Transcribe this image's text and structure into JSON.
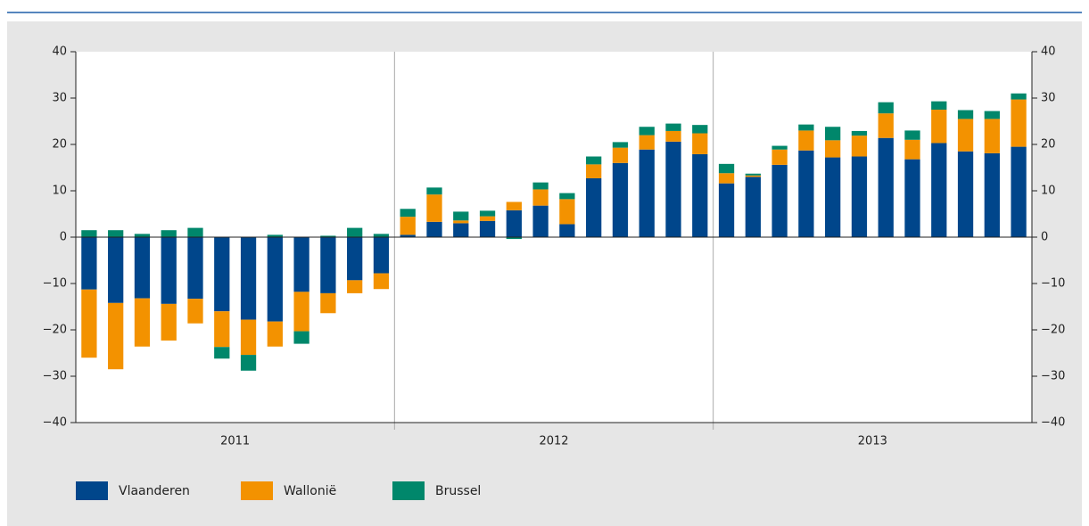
{
  "chart_data": {
    "type": "stacked_bar",
    "categories": [
      null,
      null,
      null,
      null,
      null,
      null,
      null,
      null,
      null,
      null,
      null,
      null,
      null,
      null,
      null,
      null,
      null,
      null,
      null,
      null,
      null,
      null,
      null,
      null,
      null,
      null,
      null,
      null,
      null,
      null,
      null,
      null,
      null,
      null,
      null,
      null
    ],
    "year_labels": [
      "2011",
      "2012",
      "2013"
    ],
    "series": [
      {
        "name": "Vlaanderen",
        "color": "#00468b",
        "values": [
          -11.3,
          -14.2,
          -13.2,
          -14.4,
          -13.3,
          -16,
          -17.8,
          -18.2,
          -11.8,
          -12.1,
          -9.3,
          -7.8,
          0.5,
          3.3,
          3.0,
          3.5,
          5.8,
          6.8,
          2.8,
          12.7,
          16.0,
          18.9,
          20.6,
          17.9,
          11.6,
          13.0,
          15.6,
          18.7,
          17.2,
          17.4,
          21.4,
          16.8,
          20.3,
          18.5,
          18.1,
          19.5
        ]
      },
      {
        "name": "Wallonië",
        "color": "#f39200",
        "values": [
          -14.7,
          -14.3,
          -10.4,
          -7.9,
          -5.3,
          -7.7,
          -7.6,
          -5.4,
          -8.5,
          -4.3,
          -2.8,
          -3.4,
          3.9,
          5.9,
          0.6,
          1.0,
          1.8,
          3.5,
          5.4,
          3.0,
          3.3,
          3.1,
          2.3,
          4.5,
          2.2,
          0.3,
          3.3,
          4.3,
          3.7,
          4.5,
          5.3,
          4.2,
          7.2,
          7.0,
          7.4,
          10.2
        ]
      },
      {
        "name": "Brussel",
        "color": "#00876b",
        "values": [
          1.5,
          1.5,
          0.7,
          1.5,
          2.0,
          -2.5,
          -3.4,
          0.5,
          -2.7,
          0.3,
          2.0,
          0.7,
          1.7,
          1.5,
          1.9,
          1.2,
          -0.4,
          1.5,
          1.3,
          1.7,
          1.2,
          1.8,
          1.6,
          1.8,
          2.0,
          0.4,
          0.8,
          1.3,
          2.9,
          1.0,
          2.4,
          2.0,
          1.8,
          1.9,
          1.7,
          1.3
        ]
      }
    ],
    "ylim": [
      -40,
      40
    ],
    "yticks": [
      {
        "value": -40,
        "label": "−40"
      },
      {
        "value": -30,
        "label": "−30"
      },
      {
        "value": -20,
        "label": "−20"
      },
      {
        "value": -10,
        "label": "−10"
      },
      0,
      10,
      20,
      30,
      40
    ],
    "y2lim": [
      -40,
      40
    ],
    "y2ticks": [
      {
        "value": -40,
        "label": "−40"
      },
      {
        "value": -30,
        "label": "−30"
      },
      {
        "value": -20,
        "label": "−20"
      },
      {
        "value": -10,
        "label": "−10"
      },
      0,
      10,
      20,
      30,
      40
    ],
    "legend": "bottom-left"
  }
}
